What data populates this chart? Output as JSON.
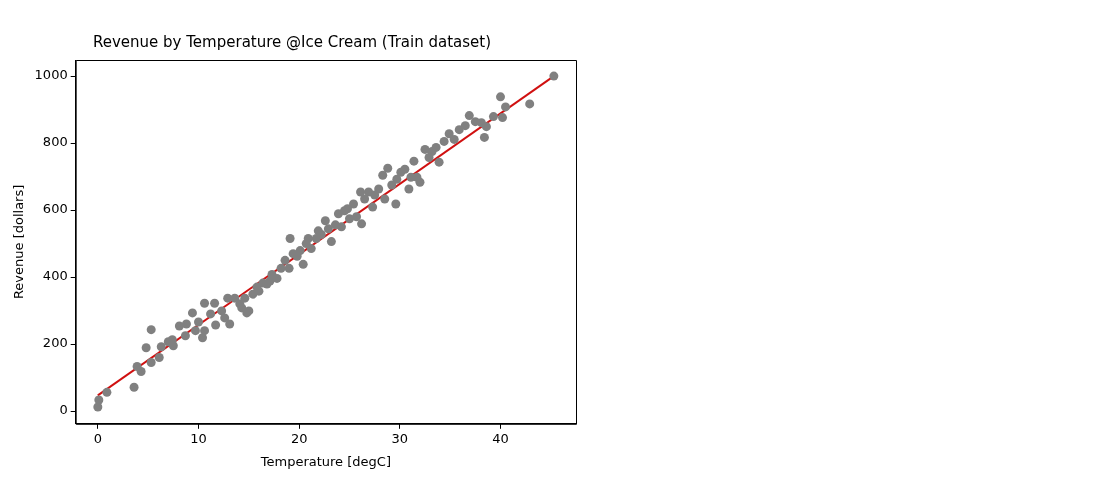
{
  "chart_data": {
    "type": "scatter",
    "title": "Revenue by Temperature @Ice Cream (Train dataset)",
    "xlabel": "Temperature [degC]",
    "ylabel": "Revenue [dollars]",
    "xlim": [
      -2.2,
      47.5
    ],
    "ylim": [
      -38,
      1048
    ],
    "xticks": [
      0,
      10,
      20,
      30,
      40
    ],
    "yticks": [
      0,
      200,
      400,
      600,
      800,
      1000
    ],
    "grid": false,
    "legend": false,
    "marker": "circle",
    "series": [
      {
        "color": "#808080",
        "x": [
          0,
          0.1,
          0.9,
          3.6,
          3.9,
          4.3,
          4.8,
          5.3,
          5.3,
          6.1,
          6.3,
          7,
          7.4,
          7.5,
          8.1,
          8.7,
          8.8,
          9.4,
          9.7,
          10,
          10.4,
          10.6,
          10.6,
          11.2,
          11.6,
          11.7,
          12.3,
          12.6,
          12.9,
          13.1,
          13.6,
          14.1,
          14.3,
          14.6,
          14.8,
          15,
          15.4,
          15.8,
          16,
          16.4,
          16.8,
          17.1,
          17.3,
          17.8,
          18.2,
          18.6,
          19,
          19.1,
          19.4,
          19.8,
          20.1,
          20.4,
          20.7,
          20.9,
          21.2,
          21.7,
          21.9,
          22.2,
          22.6,
          22.9,
          23.2,
          23.6,
          23.9,
          24.2,
          24.5,
          24.8,
          25,
          25.4,
          25.7,
          26.1,
          26.2,
          26.5,
          26.9,
          27.3,
          27.5,
          27.9,
          28.3,
          28.5,
          28.8,
          29.2,
          29.6,
          29.7,
          30.1,
          30.5,
          30.9,
          31.1,
          31.4,
          31.7,
          32,
          32.5,
          32.9,
          33.2,
          33.6,
          33.9,
          34.4,
          34.9,
          35.4,
          35.9,
          36.5,
          36.9,
          37.5,
          38.1,
          38.4,
          38.6,
          39.3,
          40,
          40.2,
          40.5,
          42.9,
          45.3
        ],
        "values": [
          12,
          33,
          56,
          71,
          133,
          118,
          189,
          243,
          145,
          160,
          192,
          207,
          213,
          195,
          254,
          225,
          260,
          293,
          240,
          266,
          219,
          240,
          322,
          290,
          322,
          257,
          299,
          278,
          337,
          260,
          337,
          320,
          308,
          337,
          293,
          299,
          349,
          370,
          358,
          382,
          379,
          388,
          408,
          396,
          426,
          450,
          426,
          515,
          470,
          462,
          479,
          438,
          500,
          515,
          485,
          515,
          538,
          527,
          568,
          544,
          506,
          556,
          589,
          550,
          598,
          604,
          574,
          618,
          580,
          654,
          559,
          633,
          654,
          609,
          645,
          663,
          704,
          633,
          725,
          675,
          618,
          692,
          713,
          722,
          663,
          698,
          746,
          698,
          683,
          781,
          757,
          775,
          787,
          743,
          805,
          828,
          811,
          840,
          852,
          882,
          864,
          861,
          817,
          849,
          879,
          938,
          876,
          908,
          917,
          1000
        ]
      },
      {
        "type": "line",
        "color": "#d01010",
        "marker": "none",
        "line_style": "solid",
        "x": [
          0,
          45.3
        ],
        "values": [
          47,
          1000
        ]
      }
    ]
  }
}
